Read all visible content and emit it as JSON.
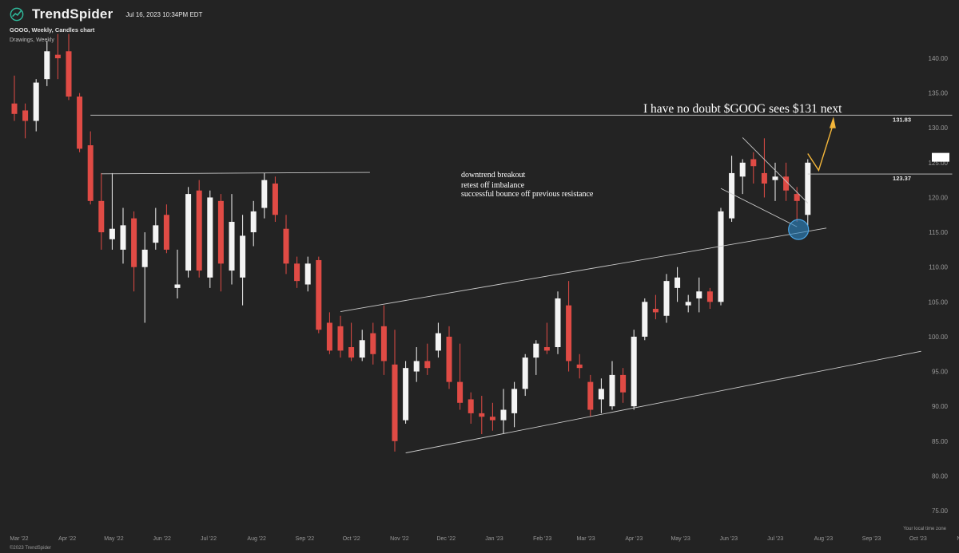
{
  "header": {
    "brand": "TrendSpider",
    "timestamp": "Jul 16, 2023 10:34PM EDT",
    "chart_title": "GOOG, Weekly, Candles chart",
    "drawings_label": "Drawings, Weekly"
  },
  "footer": {
    "timezone": "Your local time zone",
    "copyright": "©2023 TrendSpider"
  },
  "colors": {
    "background": "#232323",
    "up_candle": "#f4f4f4",
    "down_candle": "#e04b45",
    "trendline": "#c9c9c9",
    "arrow": "#f3b63a",
    "circle": "#2d88c8"
  },
  "chart_data": {
    "type": "candlestick",
    "symbol": "GOOG",
    "timeframe": "Weekly",
    "ylim": [
      73,
      144
    ],
    "y_ticks": [
      "140.00",
      "135.00",
      "130.00",
      "125.00",
      "120.00",
      "115.00",
      "110.00",
      "105.00",
      "100.00",
      "95.00",
      "90.00",
      "85.00",
      "80.00",
      "75.00"
    ],
    "x_ticks": [
      "Mar '22",
      "Apr '22",
      "May '22",
      "Jun '22",
      "Jul '22",
      "Aug '22",
      "Sep '22",
      "Oct '22",
      "Nov '22",
      "Dec '22",
      "Jan '23",
      "Feb '23",
      "Mar '23",
      "Apr '23",
      "May '23",
      "Jun '23",
      "Jul '23",
      "Aug '23",
      "Sep '23",
      "Oct '23",
      "Nov '23"
    ],
    "price_markers": [
      {
        "label": "131.83",
        "value": 131.83
      },
      {
        "label": "123.37",
        "value": 123.37
      }
    ],
    "candles": [
      {
        "date": "2022-02-28",
        "o": 133.5,
        "h": 137.5,
        "c": 132.0,
        "l": 131.0
      },
      {
        "date": "2022-03-07",
        "o": 132.5,
        "h": 133.5,
        "c": 131.0,
        "l": 128.5
      },
      {
        "date": "2022-03-14",
        "o": 131.0,
        "h": 137.0,
        "c": 136.5,
        "l": 129.5
      },
      {
        "date": "2022-03-21",
        "o": 137.0,
        "h": 142.5,
        "c": 141.0,
        "l": 136.0
      },
      {
        "date": "2022-03-28",
        "o": 140.5,
        "h": 143.5,
        "c": 140.0,
        "l": 137.0
      },
      {
        "date": "2022-04-04",
        "o": 141.0,
        "h": 143.5,
        "c": 134.5,
        "l": 134.0
      },
      {
        "date": "2022-04-11",
        "o": 134.5,
        "h": 135.0,
        "c": 127.0,
        "l": 126.5
      },
      {
        "date": "2022-04-18",
        "o": 127.5,
        "h": 129.5,
        "c": 119.5,
        "l": 119.0
      },
      {
        "date": "2022-04-25",
        "o": 119.5,
        "h": 123.5,
        "c": 115.0,
        "l": 112.5
      },
      {
        "date": "2022-05-02",
        "o": 114.0,
        "h": 123.5,
        "c": 115.5,
        "l": 112.5
      },
      {
        "date": "2022-05-09",
        "o": 112.5,
        "h": 118.5,
        "c": 116.0,
        "l": 110.5
      },
      {
        "date": "2022-05-16",
        "o": 117.0,
        "h": 118.0,
        "c": 110.0,
        "l": 106.5
      },
      {
        "date": "2022-05-23",
        "o": 110.0,
        "h": 115.0,
        "c": 112.5,
        "l": 102.0
      },
      {
        "date": "2022-05-30",
        "o": 113.5,
        "h": 118.5,
        "c": 116.0,
        "l": 112.5
      },
      {
        "date": "2022-06-06",
        "o": 117.5,
        "h": 119.0,
        "c": 112.5,
        "l": 112.0
      },
      {
        "date": "2022-06-13",
        "o": 107.0,
        "h": 112.5,
        "c": 107.5,
        "l": 105.5
      },
      {
        "date": "2022-06-20",
        "o": 109.5,
        "h": 121.5,
        "c": 120.5,
        "l": 108.5
      },
      {
        "date": "2022-06-27",
        "o": 121.0,
        "h": 122.5,
        "c": 109.5,
        "l": 108.5
      },
      {
        "date": "2022-07-04",
        "o": 108.5,
        "h": 121.0,
        "c": 120.0,
        "l": 107.0
      },
      {
        "date": "2022-07-11",
        "o": 119.5,
        "h": 120.5,
        "c": 110.5,
        "l": 106.5
      },
      {
        "date": "2022-07-18",
        "o": 109.5,
        "h": 120.5,
        "c": 116.5,
        "l": 107.5
      },
      {
        "date": "2022-07-25",
        "o": 108.5,
        "h": 117.5,
        "c": 114.5,
        "l": 104.5
      },
      {
        "date": "2022-08-01",
        "o": 115.0,
        "h": 119.5,
        "c": 118.0,
        "l": 113.0
      },
      {
        "date": "2022-08-08",
        "o": 118.5,
        "h": 123.5,
        "c": 122.5,
        "l": 117.0
      },
      {
        "date": "2022-08-15",
        "o": 122.0,
        "h": 123.0,
        "c": 117.5,
        "l": 116.5
      },
      {
        "date": "2022-08-22",
        "o": 115.5,
        "h": 117.5,
        "c": 110.5,
        "l": 109.0
      },
      {
        "date": "2022-08-29",
        "o": 110.5,
        "h": 111.5,
        "c": 108.0,
        "l": 107.0
      },
      {
        "date": "2022-09-05",
        "o": 107.5,
        "h": 111.5,
        "c": 110.5,
        "l": 106.5
      },
      {
        "date": "2022-09-12",
        "o": 111.0,
        "h": 111.5,
        "c": 101.0,
        "l": 100.5
      },
      {
        "date": "2022-09-19",
        "o": 102.0,
        "h": 103.5,
        "c": 98.0,
        "l": 97.5
      },
      {
        "date": "2022-09-26",
        "o": 101.5,
        "h": 103.0,
        "c": 98.0,
        "l": 97.0
      },
      {
        "date": "2022-10-03",
        "o": 98.5,
        "h": 102.0,
        "c": 97.0,
        "l": 96.5
      },
      {
        "date": "2022-10-10",
        "o": 97.0,
        "h": 101.0,
        "c": 99.5,
        "l": 96.5
      },
      {
        "date": "2022-10-17",
        "o": 100.5,
        "h": 102.0,
        "c": 97.5,
        "l": 96.0
      },
      {
        "date": "2022-10-24",
        "o": 101.5,
        "h": 104.5,
        "c": 96.5,
        "l": 94.5
      },
      {
        "date": "2022-10-31",
        "o": 96.0,
        "h": 101.0,
        "c": 85.0,
        "l": 83.5
      },
      {
        "date": "2022-11-07",
        "o": 88.0,
        "h": 96.5,
        "c": 95.5,
        "l": 87.5
      },
      {
        "date": "2022-11-14",
        "o": 95.0,
        "h": 98.5,
        "c": 96.5,
        "l": 93.5
      },
      {
        "date": "2022-11-21",
        "o": 96.5,
        "h": 99.0,
        "c": 95.5,
        "l": 94.5
      },
      {
        "date": "2022-11-28",
        "o": 98.0,
        "h": 102.0,
        "c": 100.5,
        "l": 97.0
      },
      {
        "date": "2022-12-05",
        "o": 100.0,
        "h": 101.5,
        "c": 93.5,
        "l": 92.5
      },
      {
        "date": "2022-12-12",
        "o": 93.5,
        "h": 99.0,
        "c": 90.5,
        "l": 89.5
      },
      {
        "date": "2022-12-19",
        "o": 91.0,
        "h": 92.0,
        "c": 89.0,
        "l": 87.5
      },
      {
        "date": "2022-12-26",
        "o": 89.0,
        "h": 91.5,
        "c": 88.5,
        "l": 86.0
      },
      {
        "date": "2023-01-02",
        "o": 88.5,
        "h": 90.5,
        "c": 88.0,
        "l": 86.5
      },
      {
        "date": "2023-01-09",
        "o": 88.0,
        "h": 92.5,
        "c": 89.5,
        "l": 86.0
      },
      {
        "date": "2023-01-16",
        "o": 89.0,
        "h": 93.5,
        "c": 92.5,
        "l": 87.0
      },
      {
        "date": "2023-01-23",
        "o": 92.5,
        "h": 97.5,
        "c": 97.0,
        "l": 91.5
      },
      {
        "date": "2023-01-30",
        "o": 97.0,
        "h": 99.5,
        "c": 99.0,
        "l": 94.5
      },
      {
        "date": "2023-02-06",
        "o": 98.5,
        "h": 102.0,
        "c": 98.0,
        "l": 97.5
      },
      {
        "date": "2023-02-13",
        "o": 98.5,
        "h": 106.5,
        "c": 105.5,
        "l": 97.5
      },
      {
        "date": "2023-02-20",
        "o": 104.5,
        "h": 108.0,
        "c": 96.5,
        "l": 95.0
      },
      {
        "date": "2023-02-27",
        "o": 96.0,
        "h": 97.5,
        "c": 95.5,
        "l": 94.0
      },
      {
        "date": "2023-03-06",
        "o": 93.5,
        "h": 94.5,
        "c": 89.5,
        "l": 88.5
      },
      {
        "date": "2023-03-13",
        "o": 91.0,
        "h": 94.0,
        "c": 92.5,
        "l": 89.0
      },
      {
        "date": "2023-03-20",
        "o": 90.0,
        "h": 96.5,
        "c": 94.5,
        "l": 89.5
      },
      {
        "date": "2023-03-27",
        "o": 94.5,
        "h": 95.5,
        "c": 92.0,
        "l": 90.5
      },
      {
        "date": "2023-04-03",
        "o": 90.0,
        "h": 101.0,
        "c": 100.0,
        "l": 89.5
      },
      {
        "date": "2023-04-10",
        "o": 100.0,
        "h": 105.5,
        "c": 105.0,
        "l": 99.5
      },
      {
        "date": "2023-04-17",
        "o": 104.0,
        "h": 106.0,
        "c": 103.5,
        "l": 102.5
      },
      {
        "date": "2023-04-24",
        "o": 103.0,
        "h": 109.0,
        "c": 108.0,
        "l": 102.0
      },
      {
        "date": "2023-05-01",
        "o": 107.0,
        "h": 110.0,
        "c": 108.5,
        "l": 105.0
      },
      {
        "date": "2023-05-08",
        "o": 104.5,
        "h": 106.0,
        "c": 105.0,
        "l": 103.5
      },
      {
        "date": "2023-05-15",
        "o": 105.5,
        "h": 108.5,
        "c": 106.5,
        "l": 103.5
      },
      {
        "date": "2023-05-22",
        "o": 106.5,
        "h": 107.0,
        "c": 105.0,
        "l": 104.0
      },
      {
        "date": "2023-05-29",
        "o": 105.0,
        "h": 118.5,
        "c": 118.0,
        "l": 104.5
      },
      {
        "date": "2023-06-05",
        "o": 117.0,
        "h": 126.0,
        "c": 123.5,
        "l": 116.5
      },
      {
        "date": "2023-06-12",
        "o": 123.0,
        "h": 125.5,
        "c": 125.0,
        "l": 120.5
      },
      {
        "date": "2023-06-19",
        "o": 125.5,
        "h": 126.5,
        "c": 124.5,
        "l": 122.0
      },
      {
        "date": "2023-06-26",
        "o": 123.5,
        "h": 128.5,
        "c": 122.0,
        "l": 120.0
      },
      {
        "date": "2023-07-03",
        "o": 122.5,
        "h": 125.0,
        "c": 123.0,
        "l": 119.5
      },
      {
        "date": "2023-07-10",
        "o": 123.0,
        "h": 125.0,
        "c": 121.0,
        "l": 119.5
      },
      {
        "date": "2023-07-17",
        "o": 120.5,
        "h": 121.5,
        "c": 119.5,
        "l": 116.5
      },
      {
        "date": "2023-07-24",
        "o": 117.5,
        "h": 125.5,
        "c": 125.0,
        "l": 116.0
      }
    ],
    "annotations": [
      {
        "text": "I have no doubt $GOOG sees $131 next"
      },
      {
        "text": "downtrend breakout"
      },
      {
        "text": "retest off imbalance"
      },
      {
        "text": "successful bounce off previous resistance"
      }
    ]
  }
}
